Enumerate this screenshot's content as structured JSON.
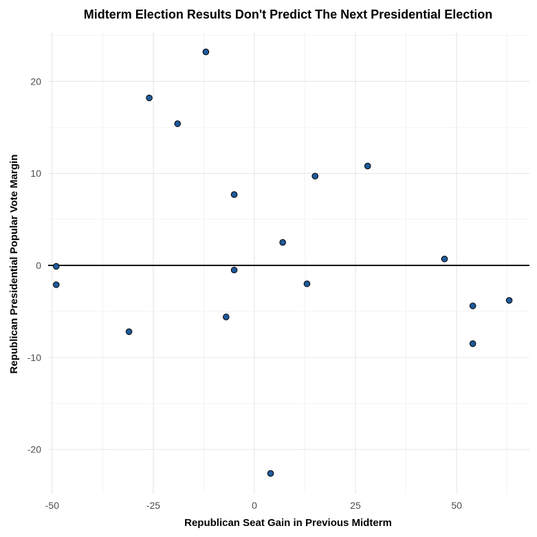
{
  "chart_data": {
    "type": "scatter",
    "title": "Midterm Election Results Don't Predict The Next Presidential Election",
    "xlabel": "Republican Seat Gain in Previous Midterm",
    "ylabel": "Republican Presidential Popular Vote Margin",
    "xlim": [
      -51,
      68
    ],
    "ylim": [
      -24.8,
      25.4
    ],
    "x_ticks": [
      -50,
      -25,
      0,
      25,
      50
    ],
    "y_ticks": [
      -20,
      -10,
      0,
      10,
      20
    ],
    "x_tick_labels": [
      "-50",
      "-25",
      "0",
      "25",
      "50"
    ],
    "y_tick_labels": [
      "-20",
      "-10",
      "0",
      "10",
      "20"
    ],
    "grid": true,
    "reference_line_y": 0,
    "point_color": "#1f5a9a",
    "points": [
      {
        "x": -49,
        "y": -0.1
      },
      {
        "x": -49,
        "y": -2.1
      },
      {
        "x": -31,
        "y": -7.2
      },
      {
        "x": -26,
        "y": 18.2
      },
      {
        "x": -19,
        "y": 15.4
      },
      {
        "x": -12,
        "y": 23.2
      },
      {
        "x": -7,
        "y": -5.6
      },
      {
        "x": -5,
        "y": 7.7
      },
      {
        "x": -5,
        "y": -0.5
      },
      {
        "x": 4,
        "y": -22.6
      },
      {
        "x": 7,
        "y": 2.5
      },
      {
        "x": 13,
        "y": -2.0
      },
      {
        "x": 15,
        "y": 9.7
      },
      {
        "x": 28,
        "y": 10.8
      },
      {
        "x": 47,
        "y": 0.7
      },
      {
        "x": 54,
        "y": -4.4
      },
      {
        "x": 54,
        "y": -8.5
      },
      {
        "x": 63,
        "y": -3.8
      }
    ]
  }
}
